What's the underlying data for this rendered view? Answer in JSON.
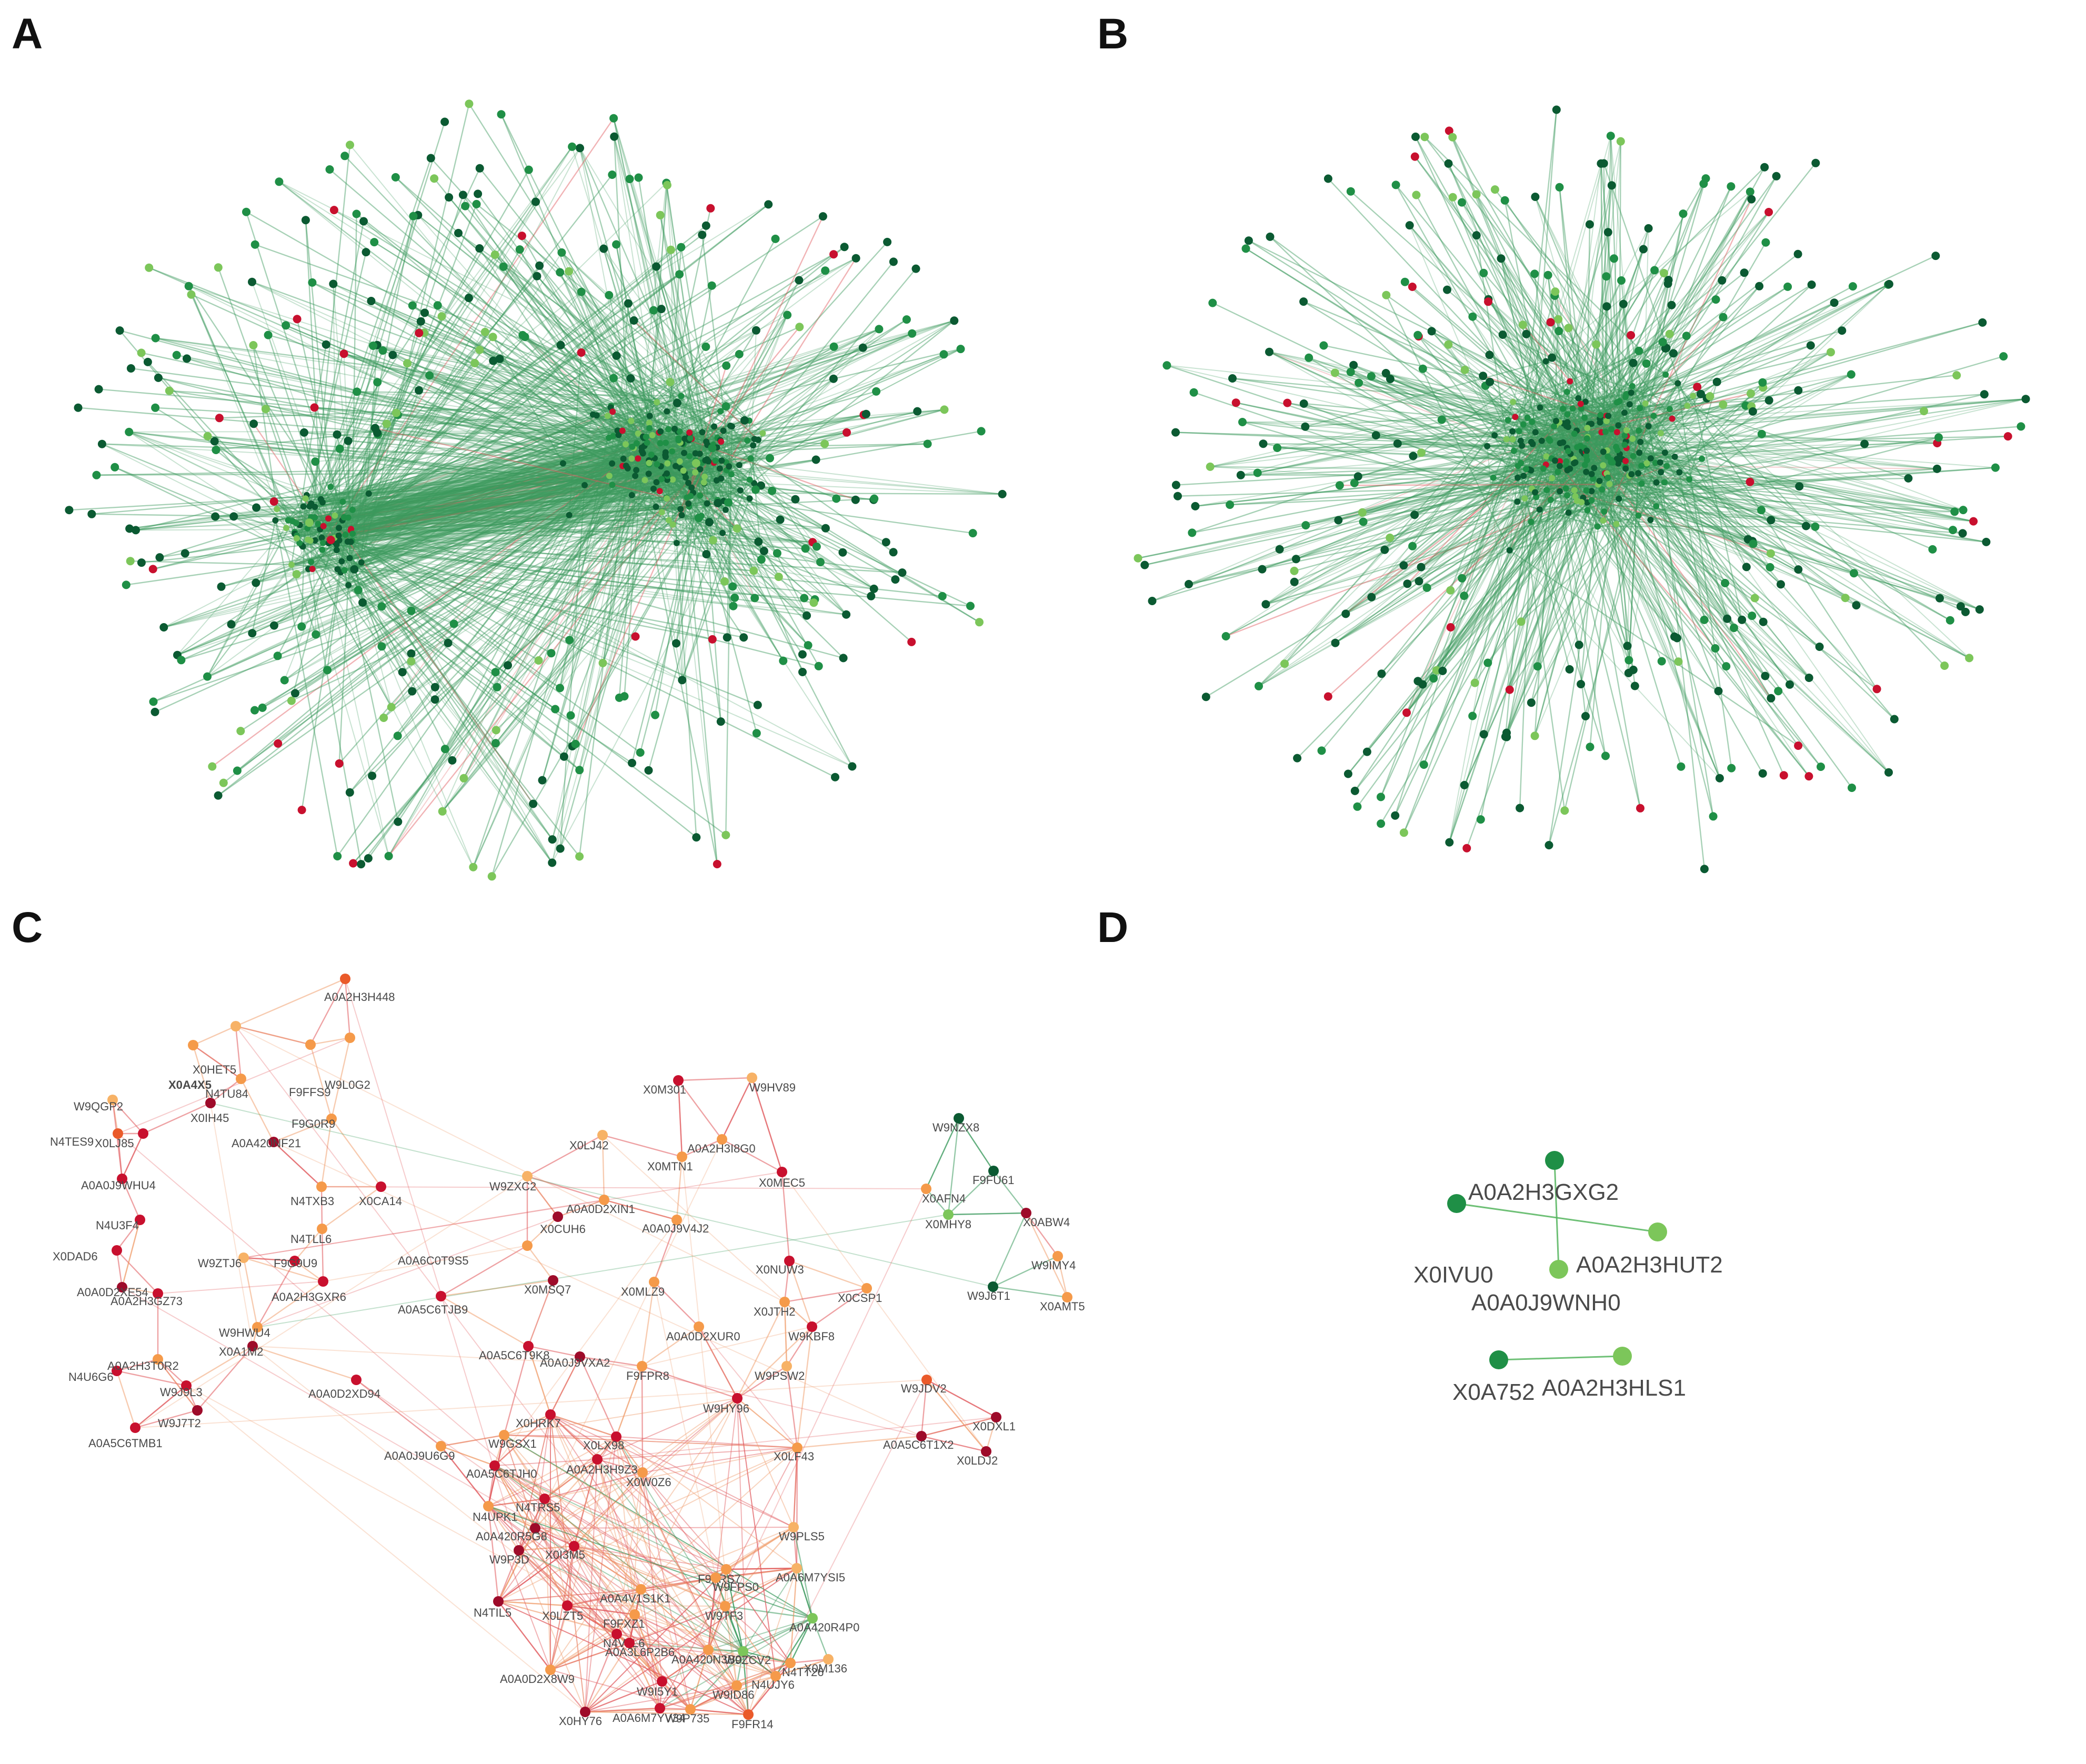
{
  "panels": {
    "A": {
      "letter": "A"
    },
    "B": {
      "letter": "B"
    },
    "C": {
      "letter": "C"
    },
    "D": {
      "letter": "D"
    }
  },
  "colors": {
    "dark_green": "#0b5a32",
    "green": "#1f8f46",
    "light_green": "#7cc65a",
    "edge_green": "#3c9a5e",
    "red": "#c8102e",
    "dark_red": "#9e0b2a",
    "orange_red": "#ea5a2a",
    "orange": "#f59a4a",
    "light_orange": "#f7b266",
    "edge_red": "#e0565a",
    "edge_orange": "#f0a070"
  },
  "panel_c_nodes": [
    {
      "label": "A0A2H3H448",
      "color": "orange_red"
    },
    {
      "label": "X0HET5",
      "color": "light_orange"
    },
    {
      "label": "X0A4X5",
      "color": "orange"
    },
    {
      "label": "F9FFS9",
      "color": "orange"
    },
    {
      "label": "W9L0G2",
      "color": "orange"
    },
    {
      "label": "W9QGP2",
      "color": "light_orange"
    },
    {
      "label": "N4TU84",
      "color": "orange"
    },
    {
      "label": "X0IH45",
      "color": "dark_red"
    },
    {
      "label": "N4TES9",
      "color": "orange_red"
    },
    {
      "label": "X0LJ85",
      "color": "red"
    },
    {
      "label": "F9G0R9",
      "color": "orange"
    },
    {
      "label": "A0A420NF21",
      "color": "dark_red"
    },
    {
      "label": "A0A0J9WHU4",
      "color": "red"
    },
    {
      "label": "N4TXB3",
      "color": "orange"
    },
    {
      "label": "X0CA14",
      "color": "red"
    },
    {
      "label": "N4U3F4",
      "color": "red"
    },
    {
      "label": "N4TLL6",
      "color": "orange"
    },
    {
      "label": "X0DAD6",
      "color": "red"
    },
    {
      "label": "W9ZTJ6",
      "color": "light_orange"
    },
    {
      "label": "F9G9U9",
      "color": "red"
    },
    {
      "label": "A0A0D2XE54",
      "color": "dark_red"
    },
    {
      "label": "A0A2H3GZ73",
      "color": "red"
    },
    {
      "label": "A0A2H3GXR6",
      "color": "red"
    },
    {
      "label": "W9HWU4",
      "color": "orange"
    },
    {
      "label": "X0A1M2",
      "color": "dark_red"
    },
    {
      "label": "N4U6G6",
      "color": "red"
    },
    {
      "label": "A0A2H3T0R2",
      "color": "orange"
    },
    {
      "label": "A0A0D2XD94",
      "color": "red"
    },
    {
      "label": "W9J9L3",
      "color": "red"
    },
    {
      "label": "W9J7T2",
      "color": "dark_red"
    },
    {
      "label": "A0A5C6TMB1",
      "color": "red"
    },
    {
      "label": "A0A5C6TJB9",
      "color": "red"
    },
    {
      "label": "A0A6C0T9S5",
      "color": "orange"
    },
    {
      "label": "X0M301",
      "color": "red"
    },
    {
      "label": "W9HV89",
      "color": "light_orange"
    },
    {
      "label": "X0LJ42",
      "color": "light_orange"
    },
    {
      "label": "A0A2H3I8G0",
      "color": "orange"
    },
    {
      "label": "W9ZXC2",
      "color": "light_orange"
    },
    {
      "label": "X0MTN1",
      "color": "orange"
    },
    {
      "label": "X0MEC5",
      "color": "red"
    },
    {
      "label": "A0A0D2XIN1",
      "color": "orange"
    },
    {
      "label": "X0CUH6",
      "color": "dark_red"
    },
    {
      "label": "A0A0J9V4J2",
      "color": "orange"
    },
    {
      "label": "X0NUW3",
      "color": "red"
    },
    {
      "label": "X0MSQ7",
      "color": "dark_red"
    },
    {
      "label": "X0MLZ9",
      "color": "orange"
    },
    {
      "label": "X0JTH2",
      "color": "orange"
    },
    {
      "label": "A0A0D2XUR0",
      "color": "orange"
    },
    {
      "label": "W9KBF8",
      "color": "red"
    },
    {
      "label": "X0CSP1",
      "color": "orange"
    },
    {
      "label": "A0A5C6T9K8",
      "color": "red"
    },
    {
      "label": "A0A0J9VXA2",
      "color": "dark_red"
    },
    {
      "label": "F9FPR8",
      "color": "orange"
    },
    {
      "label": "W9PSW2",
      "color": "light_orange"
    },
    {
      "label": "W9HY96",
      "color": "red"
    },
    {
      "label": "W9JDV2",
      "color": "orange_red"
    },
    {
      "label": "X0DXL1",
      "color": "dark_red"
    },
    {
      "label": "A0A5C6T1X2",
      "color": "dark_red"
    },
    {
      "label": "X0LDJ2",
      "color": "dark_red"
    },
    {
      "label": "A0A0J9U6G9",
      "color": "orange"
    },
    {
      "label": "X0HRK7",
      "color": "red"
    },
    {
      "label": "W9GSX1",
      "color": "orange"
    },
    {
      "label": "X0LX98",
      "color": "red"
    },
    {
      "label": "A0A5C6TJH0",
      "color": "red"
    },
    {
      "label": "A0A2H3H9Z3",
      "color": "red"
    },
    {
      "label": "X0W0Z6",
      "color": "orange"
    },
    {
      "label": "X0LF43",
      "color": "orange"
    },
    {
      "label": "N4UPK1",
      "color": "orange"
    },
    {
      "label": "N4TRS5",
      "color": "red"
    },
    {
      "label": "W9PLS5",
      "color": "light_orange"
    },
    {
      "label": "A0A420R5G8",
      "color": "dark_red"
    },
    {
      "label": "A0A6M7YSI5",
      "color": "light_orange"
    },
    {
      "label": "W9P3D",
      "color": "dark_red"
    },
    {
      "label": "X0I3M5",
      "color": "red"
    },
    {
      "label": "F9FRS7",
      "color": "orange"
    },
    {
      "label": "W9FPS0",
      "color": "orange"
    },
    {
      "label": "N4TIL5",
      "color": "dark_red"
    },
    {
      "label": "X0LZT5",
      "color": "red"
    },
    {
      "label": "A0A4V1S1K1",
      "color": "orange"
    },
    {
      "label": "W9TF3",
      "color": "orange"
    },
    {
      "label": "A0A420R4P0",
      "color": "light_green"
    },
    {
      "label": "F9FXZ1",
      "color": "orange"
    },
    {
      "label": "N4V0L6",
      "color": "red"
    },
    {
      "label": "X0M136",
      "color": "light_orange"
    },
    {
      "label": "A0A0D2X8W9",
      "color": "orange"
    },
    {
      "label": "A0A3L6P2B6",
      "color": "red"
    },
    {
      "label": "A0A420N3B0",
      "color": "orange"
    },
    {
      "label": "W9ZCV2",
      "color": "light_green"
    },
    {
      "label": "N4TT26",
      "color": "orange"
    },
    {
      "label": "W9I5Y1",
      "color": "red"
    },
    {
      "label": "W9ID86",
      "color": "orange"
    },
    {
      "label": "N4UJY6",
      "color": "orange"
    },
    {
      "label": "X0HY76",
      "color": "dark_red"
    },
    {
      "label": "A0A6M7YV34",
      "color": "red"
    },
    {
      "label": "W9P735",
      "color": "orange"
    },
    {
      "label": "F9FR14",
      "color": "orange_red"
    },
    {
      "label": "W9NZX8",
      "color": "dark_green"
    },
    {
      "label": "F9FU61",
      "color": "dark_green"
    },
    {
      "label": "X0AFN4",
      "color": "orange"
    },
    {
      "label": "X0ABW4",
      "color": "dark_red"
    },
    {
      "label": "X0MHY8",
      "color": "light_green"
    },
    {
      "label": "W9IMY4",
      "color": "orange"
    },
    {
      "label": "W9J6T1",
      "color": "dark_green"
    },
    {
      "label": "X0AMT5",
      "color": "orange"
    }
  ],
  "panel_d": {
    "nodes": [
      {
        "label": "A0A2H3GXG2",
        "color": "green"
      },
      {
        "label": "X0IVU0",
        "color": "green"
      },
      {
        "label": "A0A2H3HUT2",
        "color": "light_green"
      },
      {
        "label": "A0A0J9WNH0",
        "color": "light_green"
      },
      {
        "label": "X0A752",
        "color": "green"
      },
      {
        "label": "A0A2H3HLS1",
        "color": "light_green"
      }
    ]
  }
}
